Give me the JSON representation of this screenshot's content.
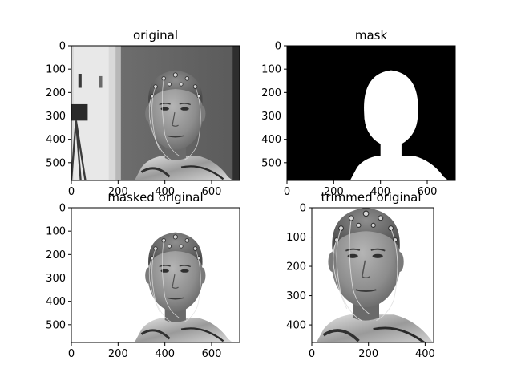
{
  "figure": {
    "background": "#ffffff"
  },
  "chart_data": [
    {
      "type": "image",
      "title": "original",
      "content": "grayscale photo of a person wearing an EEG electrode cap, with a door and wall visible in the background",
      "image_size": [
        720,
        576
      ],
      "xlim": [
        0,
        720
      ],
      "ylim": [
        576,
        0
      ],
      "xticks": [
        "0",
        "200",
        "400",
        "600"
      ],
      "yticks": [
        "0",
        "100",
        "200",
        "300",
        "400",
        "500"
      ]
    },
    {
      "type": "image",
      "title": "mask",
      "content": "binary mask: white silhouette of head and shoulders on a black background",
      "image_size": [
        720,
        576
      ],
      "xlim": [
        0,
        720
      ],
      "ylim": [
        576,
        0
      ],
      "xticks": [
        "0",
        "200",
        "400",
        "600"
      ],
      "yticks": [
        "0",
        "100",
        "200",
        "300",
        "400",
        "500"
      ]
    },
    {
      "type": "image",
      "title": "masked original",
      "content": "grayscale photo of the head and shoulders only, background removed to white",
      "image_size": [
        720,
        576
      ],
      "xlim": [
        0,
        720
      ],
      "ylim": [
        576,
        0
      ],
      "xticks": [
        "0",
        "200",
        "400",
        "600"
      ],
      "yticks": [
        "0",
        "100",
        "200",
        "300",
        "400",
        "500"
      ]
    },
    {
      "type": "image",
      "title": "trimmed original",
      "content": "masked head and shoulders cropped to its bounding box",
      "image_size": [
        430,
        460
      ],
      "xlim": [
        0,
        430
      ],
      "ylim": [
        460,
        0
      ],
      "xticks": [
        "0",
        "200",
        "400"
      ],
      "yticks": [
        "0",
        "100",
        "200",
        "300",
        "400"
      ]
    }
  ]
}
